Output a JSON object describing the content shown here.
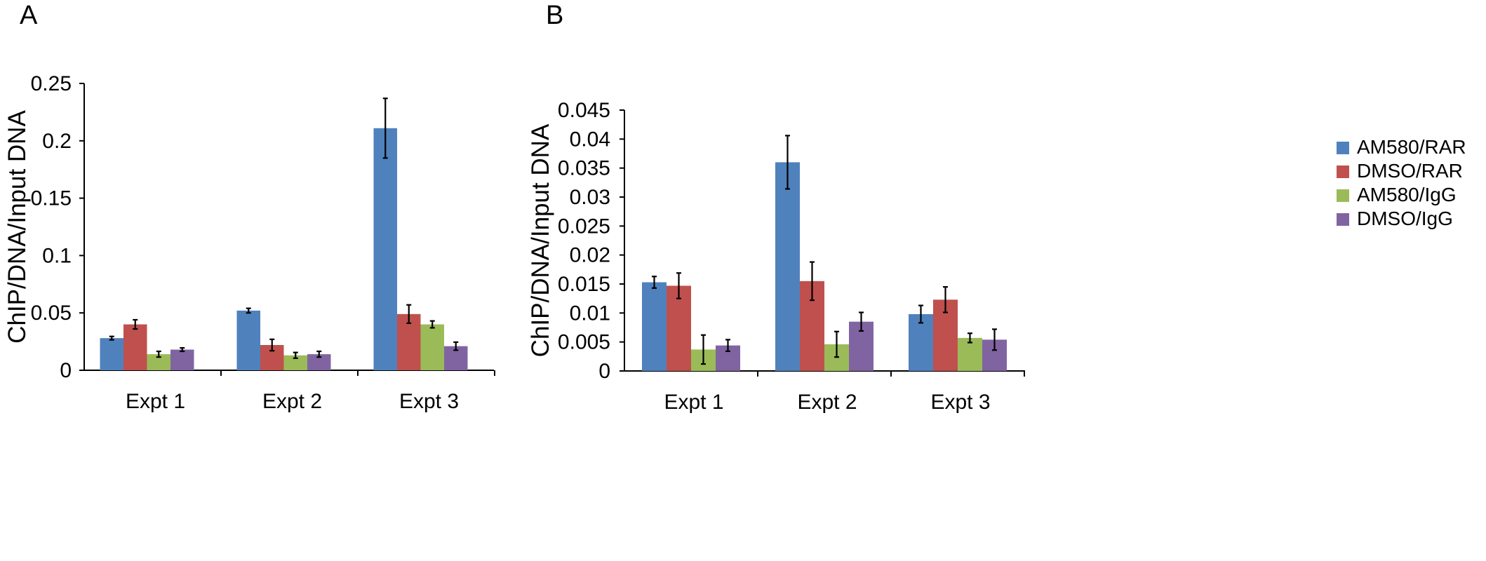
{
  "legend": {
    "position": "right",
    "items": [
      {
        "label": "AM580/RAR",
        "color": "#4f81bd"
      },
      {
        "label": "DMSO/RAR",
        "color": "#c0504d"
      },
      {
        "label": "AM580/IgG",
        "color": "#9bbb59"
      },
      {
        "label": "DMSO/IgG",
        "color": "#8064a2"
      }
    ]
  },
  "chart_data": [
    {
      "panel": "A",
      "type": "bar",
      "ylabel": "ChIP/DNA/Input DNA",
      "ylim": [
        0,
        0.25
      ],
      "yticks": [
        "0",
        "0.05",
        "0.1",
        "0.15",
        "0.2",
        "0.25"
      ],
      "categories": [
        "Expt 1",
        "Expt 2",
        "Expt 3"
      ],
      "series": [
        {
          "name": "AM580/RAR",
          "values": [
            0.028,
            0.052,
            0.211
          ],
          "errors": [
            0.0015,
            0.002,
            0.026
          ]
        },
        {
          "name": "DMSO/RAR",
          "values": [
            0.04,
            0.022,
            0.049
          ],
          "errors": [
            0.004,
            0.005,
            0.008
          ]
        },
        {
          "name": "AM580/IgG",
          "values": [
            0.014,
            0.013,
            0.04
          ],
          "errors": [
            0.0025,
            0.0025,
            0.003
          ]
        },
        {
          "name": "DMSO/IgG",
          "values": [
            0.018,
            0.014,
            0.021
          ],
          "errors": [
            0.0015,
            0.0025,
            0.0035
          ]
        }
      ]
    },
    {
      "panel": "B",
      "type": "bar",
      "ylabel": "ChIP/DNA/Input DNA",
      "ylim": [
        0,
        0.045
      ],
      "yticks": [
        "0",
        "0.005",
        "0.01",
        "0.015",
        "0.02",
        "0.025",
        "0.03",
        "0.035",
        "0.04",
        "0.045"
      ],
      "categories": [
        "Expt 1",
        "Expt 2",
        "Expt 3"
      ],
      "series": [
        {
          "name": "AM580/RAR",
          "values": [
            0.0153,
            0.036,
            0.0098
          ],
          "errors": [
            0.001,
            0.0046,
            0.0015
          ]
        },
        {
          "name": "DMSO/RAR",
          "values": [
            0.0147,
            0.0155,
            0.0123
          ],
          "errors": [
            0.0022,
            0.0033,
            0.0022
          ]
        },
        {
          "name": "AM580/IgG",
          "values": [
            0.0037,
            0.0046,
            0.0057
          ],
          "errors": [
            0.0025,
            0.0022,
            0.0008
          ]
        },
        {
          "name": "DMSO/IgG",
          "values": [
            0.0044,
            0.0085,
            0.0054
          ],
          "errors": [
            0.001,
            0.0016,
            0.0018
          ]
        }
      ]
    }
  ]
}
